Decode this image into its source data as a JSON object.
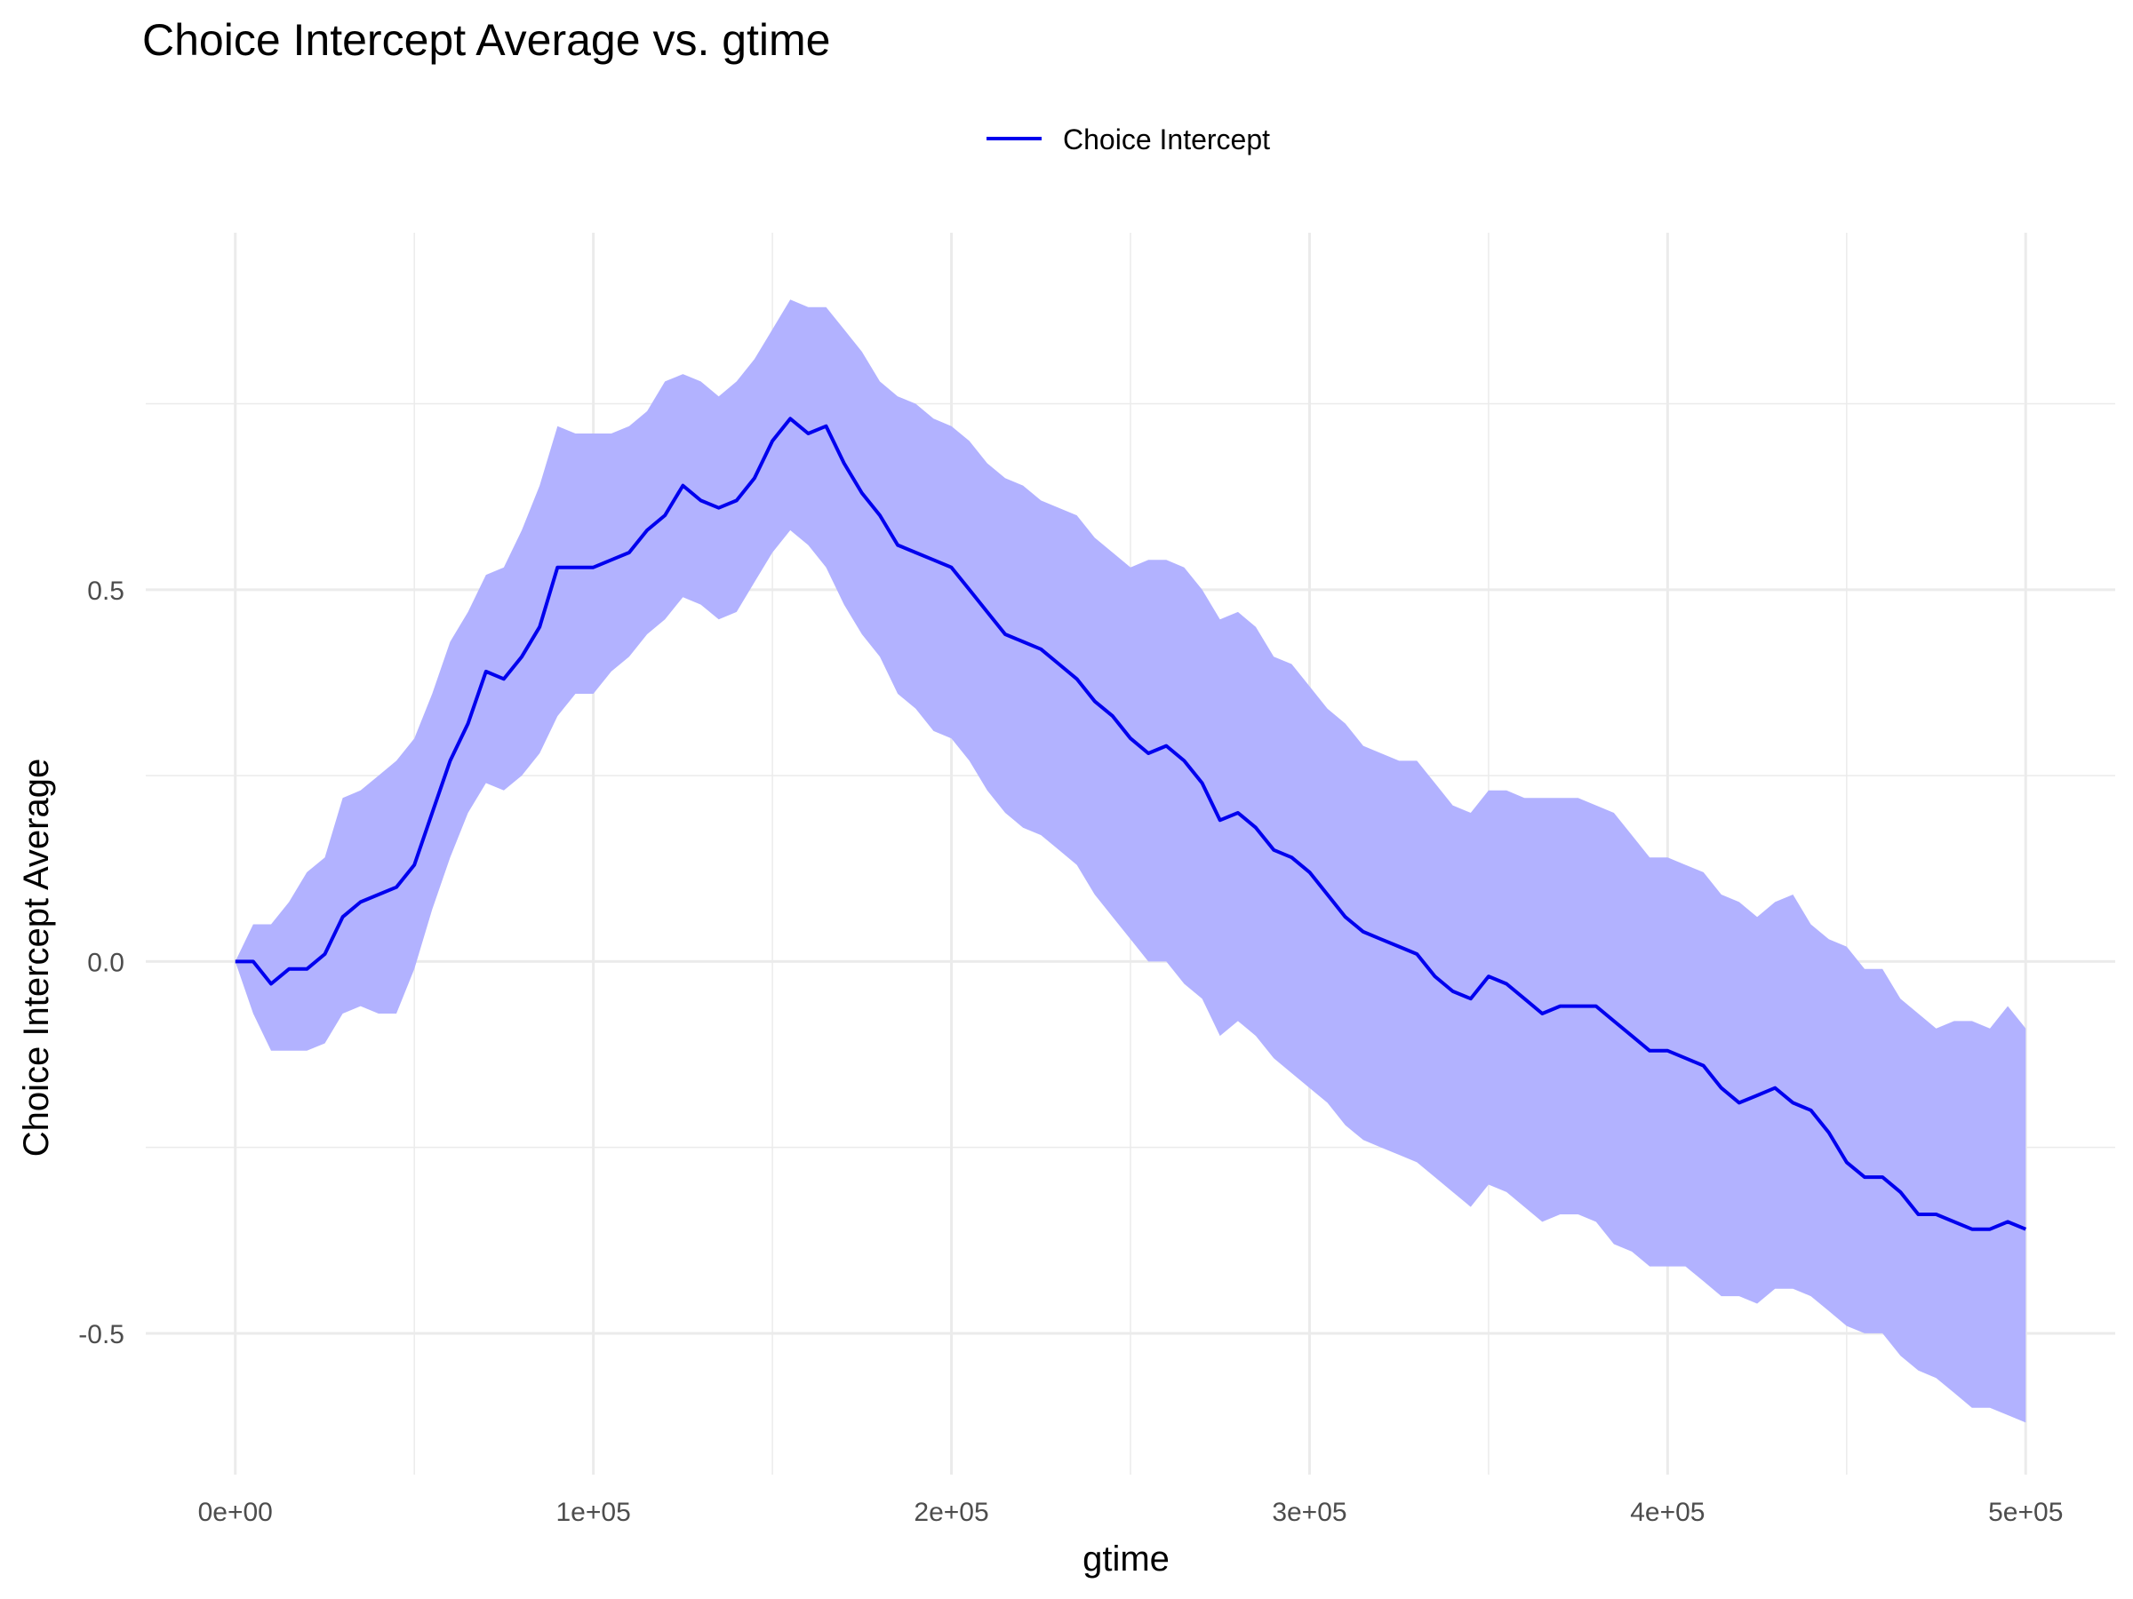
{
  "chart_data": {
    "type": "line",
    "title": "Choice Intercept Average vs. gtime",
    "xlabel": "gtime",
    "ylabel": "Choice Intercept Average",
    "xlim": [
      -25000,
      525000
    ],
    "ylim": [
      -0.69,
      0.98
    ],
    "x_ticks": [
      0,
      100000,
      200000,
      300000,
      400000,
      500000
    ],
    "x_tick_labels": [
      "0e+00",
      "1e+05",
      "2e+05",
      "3e+05",
      "4e+05",
      "5e+05"
    ],
    "y_ticks": [
      -0.5,
      0.0,
      0.5
    ],
    "y_tick_labels": [
      "-0.5",
      "0.0",
      "0.5"
    ],
    "grid": true,
    "legend": {
      "position": "top",
      "entries": [
        "Choice Intercept"
      ]
    },
    "colors": {
      "line": "#0000ee",
      "band": "#b2b2ff",
      "grid": "#ebebeb"
    },
    "series": [
      {
        "name": "Choice Intercept",
        "x": [
          0,
          5000,
          10000,
          15000,
          20000,
          25000,
          30000,
          35000,
          40000,
          45000,
          50000,
          55000,
          60000,
          65000,
          70000,
          75000,
          80000,
          85000,
          90000,
          95000,
          100000,
          105000,
          110000,
          115000,
          120000,
          125000,
          130000,
          135000,
          140000,
          145000,
          150000,
          155000,
          160000,
          165000,
          170000,
          175000,
          180000,
          185000,
          190000,
          195000,
          200000,
          205000,
          210000,
          215000,
          220000,
          225000,
          230000,
          235000,
          240000,
          245000,
          250000,
          255000,
          260000,
          265000,
          270000,
          275000,
          280000,
          285000,
          290000,
          295000,
          300000,
          305000,
          310000,
          315000,
          320000,
          325000,
          330000,
          335000,
          340000,
          345000,
          350000,
          355000,
          360000,
          365000,
          370000,
          375000,
          380000,
          385000,
          390000,
          395000,
          400000,
          405000,
          410000,
          415000,
          420000,
          425000,
          430000,
          435000,
          440000,
          445000,
          450000,
          455000,
          460000,
          465000,
          470000,
          475000,
          480000,
          485000,
          490000,
          495000,
          500000
        ],
        "y": [
          0.0,
          0.0,
          -0.03,
          -0.01,
          -0.01,
          0.01,
          0.06,
          0.08,
          0.09,
          0.1,
          0.13,
          0.2,
          0.27,
          0.32,
          0.39,
          0.38,
          0.41,
          0.45,
          0.53,
          0.53,
          0.53,
          0.54,
          0.55,
          0.58,
          0.6,
          0.64,
          0.62,
          0.61,
          0.62,
          0.65,
          0.7,
          0.73,
          0.71,
          0.72,
          0.67,
          0.63,
          0.6,
          0.56,
          0.55,
          0.54,
          0.53,
          0.5,
          0.47,
          0.44,
          0.43,
          0.42,
          0.4,
          0.38,
          0.35,
          0.33,
          0.3,
          0.28,
          0.29,
          0.27,
          0.24,
          0.19,
          0.2,
          0.18,
          0.15,
          0.14,
          0.12,
          0.09,
          0.06,
          0.04,
          0.03,
          0.02,
          0.01,
          -0.02,
          -0.04,
          -0.05,
          -0.02,
          -0.03,
          -0.05,
          -0.07,
          -0.06,
          -0.06,
          -0.06,
          -0.08,
          -0.1,
          -0.12,
          -0.12,
          -0.13,
          -0.14,
          -0.17,
          -0.19,
          -0.18,
          -0.17,
          -0.19,
          -0.2,
          -0.23,
          -0.27,
          -0.29,
          -0.29,
          -0.31,
          -0.34,
          -0.34,
          -0.35,
          -0.36,
          -0.36,
          -0.35,
          -0.36
        ],
        "lower": [
          0.0,
          -0.07,
          -0.12,
          -0.12,
          -0.12,
          -0.11,
          -0.07,
          -0.06,
          -0.07,
          -0.07,
          -0.01,
          0.07,
          0.14,
          0.2,
          0.24,
          0.23,
          0.25,
          0.28,
          0.33,
          0.36,
          0.36,
          0.39,
          0.41,
          0.44,
          0.46,
          0.49,
          0.48,
          0.46,
          0.47,
          0.51,
          0.55,
          0.58,
          0.56,
          0.53,
          0.48,
          0.44,
          0.41,
          0.36,
          0.34,
          0.31,
          0.3,
          0.27,
          0.23,
          0.2,
          0.18,
          0.17,
          0.15,
          0.13,
          0.09,
          0.06,
          0.03,
          0.0,
          0.0,
          -0.03,
          -0.05,
          -0.1,
          -0.08,
          -0.1,
          -0.13,
          -0.15,
          -0.17,
          -0.19,
          -0.22,
          -0.24,
          -0.25,
          -0.26,
          -0.27,
          -0.29,
          -0.31,
          -0.33,
          -0.3,
          -0.31,
          -0.33,
          -0.35,
          -0.34,
          -0.34,
          -0.35,
          -0.38,
          -0.39,
          -0.41,
          -0.41,
          -0.41,
          -0.43,
          -0.45,
          -0.45,
          -0.46,
          -0.44,
          -0.44,
          -0.45,
          -0.47,
          -0.49,
          -0.5,
          -0.5,
          -0.53,
          -0.55,
          -0.56,
          -0.58,
          -0.6,
          -0.6,
          -0.61,
          -0.62
        ],
        "upper": [
          0.0,
          0.05,
          0.05,
          0.08,
          0.12,
          0.14,
          0.22,
          0.23,
          0.25,
          0.27,
          0.3,
          0.36,
          0.43,
          0.47,
          0.52,
          0.53,
          0.58,
          0.64,
          0.72,
          0.71,
          0.71,
          0.71,
          0.72,
          0.74,
          0.78,
          0.79,
          0.78,
          0.76,
          0.78,
          0.81,
          0.85,
          0.89,
          0.88,
          0.88,
          0.85,
          0.82,
          0.78,
          0.76,
          0.75,
          0.73,
          0.72,
          0.7,
          0.67,
          0.65,
          0.64,
          0.62,
          0.61,
          0.6,
          0.57,
          0.55,
          0.53,
          0.54,
          0.54,
          0.53,
          0.5,
          0.46,
          0.47,
          0.45,
          0.41,
          0.4,
          0.37,
          0.34,
          0.32,
          0.29,
          0.28,
          0.27,
          0.27,
          0.24,
          0.21,
          0.2,
          0.23,
          0.23,
          0.22,
          0.22,
          0.22,
          0.22,
          0.21,
          0.2,
          0.17,
          0.14,
          0.14,
          0.13,
          0.12,
          0.09,
          0.08,
          0.06,
          0.08,
          0.09,
          0.05,
          0.03,
          0.02,
          -0.01,
          -0.01,
          -0.05,
          -0.07,
          -0.09,
          -0.08,
          -0.08,
          -0.09,
          -0.06,
          -0.09
        ]
      }
    ]
  }
}
